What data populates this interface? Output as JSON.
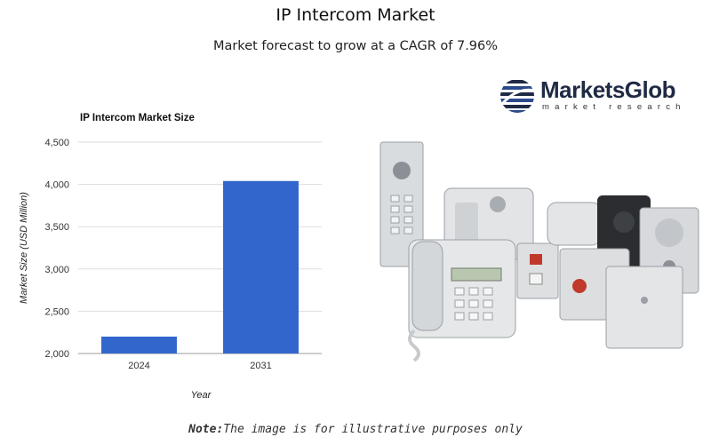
{
  "header": {
    "title": "IP Intercom Market",
    "subtitle": "Market forecast to grow at a CAGR of 7.96%"
  },
  "logo": {
    "name": "MarketsGlob",
    "tagline": "market research"
  },
  "chart_data": {
    "type": "bar",
    "title": "IP Intercom Market Size",
    "xlabel": "Year",
    "ylabel": "Market Size (USD Million)",
    "categories": [
      "2024",
      "2031"
    ],
    "values": [
      2200,
      4040
    ],
    "ylim": [
      2000,
      4500
    ],
    "yticks": [
      2000,
      2500,
      3000,
      3500,
      4000,
      4500
    ],
    "ytick_labels": [
      "2,000",
      "2,500",
      "3,000",
      "3,500",
      "4,000",
      "4,500"
    ],
    "bar_color": "#3366cc",
    "grid": true
  },
  "note": {
    "label": "Note:",
    "text": "The image is for illustrative purposes only"
  }
}
